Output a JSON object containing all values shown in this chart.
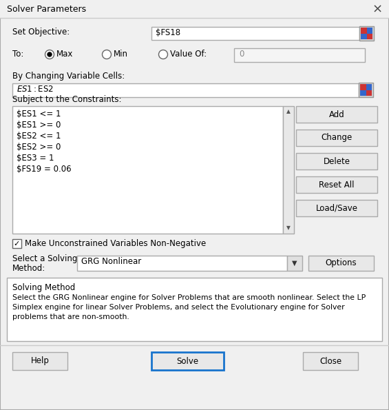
{
  "title": "Solver Parameters",
  "bg_color": "#f0f0f0",
  "set_objective_label": "Set Objective:",
  "set_objective_value": "$FS18",
  "to_label": "To:",
  "max_label": "Max",
  "min_label": "Min",
  "value_of_label": "Value Of:",
  "value_of_value": "0",
  "by_changing_label": "By Changing Variable Cells:",
  "by_changing_value": "$ES1:$ES2",
  "constraints_label": "Subject to the Constraints:",
  "constraints": [
    "$ES1 <= 1",
    "$ES1 >= 0",
    "$ES2 <= 1",
    "$ES2 >= 0",
    "$ES3 = 1",
    "$FS19 = 0.06"
  ],
  "checkbox_label": "Make Unconstrained Variables Non-Negative",
  "solving_method_value": "GRG Nonlinear",
  "solving_method_title": "Solving Method",
  "solving_method_text": "Select the GRG Nonlinear engine for Solver Problems that are smooth nonlinear. Select the LP\nSimplex engine for linear Solver Problems, and select the Evolutionary engine for Solver\nproblems that are non-smooth.",
  "buttons_right": [
    "Add",
    "Change",
    "Delete",
    "Reset All",
    "Load/Save"
  ],
  "solve_btn_color": "#1874cd",
  "titlebar_bg": "#f0f0f0",
  "dialog_bg": "#f0f0f0",
  "input_bg": "#ffffff",
  "button_bg": "#e8e8e8",
  "border_light": "#cccccc",
  "border_dark": "#999999",
  "text_color": "#000000",
  "gray_text": "#888888"
}
